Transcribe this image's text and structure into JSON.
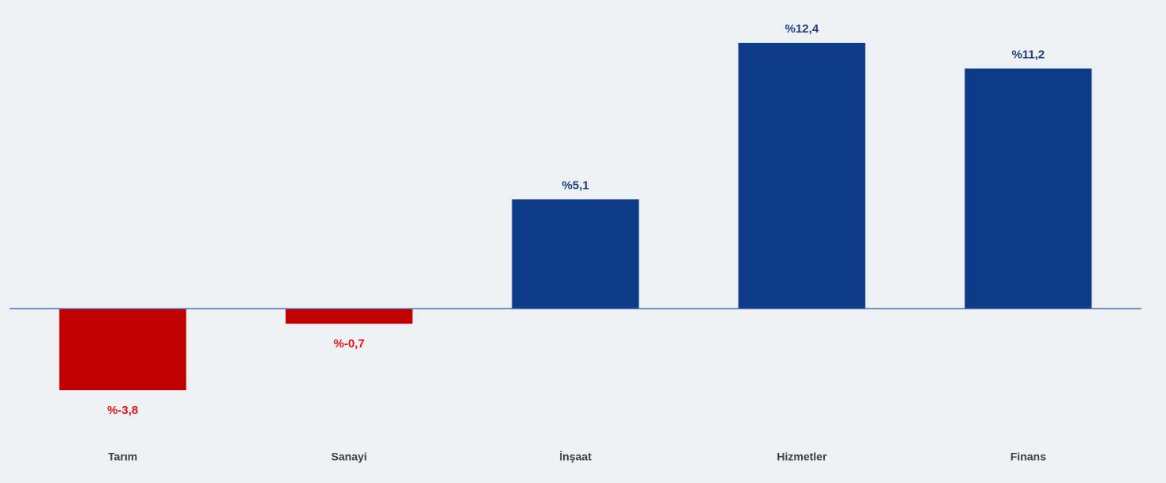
{
  "chart_data": {
    "type": "bar",
    "categories": [
      "Tarım",
      "Sanayi",
      "İnşaat",
      "Hizmetler",
      "Finans"
    ],
    "values": [
      -3.8,
      -0.7,
      5.1,
      12.4,
      11.2
    ],
    "value_labels": [
      "%-3,8",
      "%-0,7",
      "%5,1",
      "%12,4",
      "%11,2"
    ],
    "color": "#0e3b87",
    "negative_color": "#c00000",
    "label_color": "#1f3f80",
    "negative_label_color": "#e8141b",
    "baseline_color": "#4a6fb5",
    "background": "#edf1f3"
  }
}
